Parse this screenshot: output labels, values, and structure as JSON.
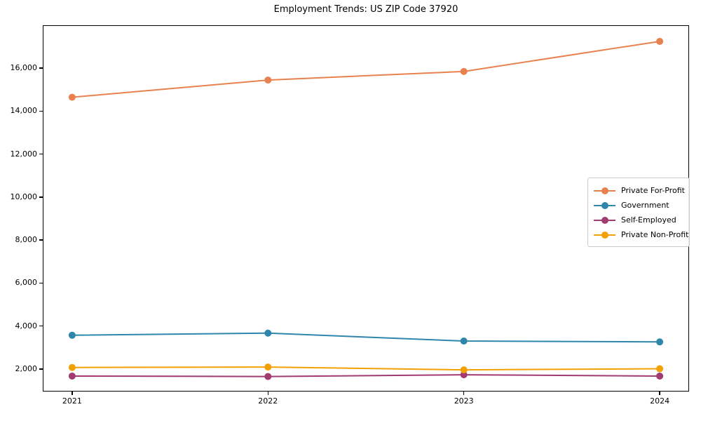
{
  "chart_data": {
    "type": "line",
    "title": "Employment Trends: US ZIP Code 37920",
    "x": [
      2021,
      2022,
      2023,
      2024
    ],
    "x_tick_labels": [
      "2021",
      "2022",
      "2023",
      "2024"
    ],
    "xlim": [
      2020.85,
      2024.15
    ],
    "y_ticks": [
      2000,
      4000,
      6000,
      8000,
      10000,
      12000,
      14000,
      16000
    ],
    "y_tick_labels": [
      "2,000",
      "4,000",
      "6,000",
      "8,000",
      "10,000",
      "12,000",
      "14,000",
      "16,000"
    ],
    "ylim": [
      950,
      18000
    ],
    "grid": false,
    "legend_position": "center right",
    "series": [
      {
        "name": "Private For-Profit",
        "color": "#E8814D",
        "values": [
          14650,
          15450,
          15850,
          17250
        ]
      },
      {
        "name": "Government",
        "color": "#2E86AB",
        "values": [
          3570,
          3670,
          3300,
          3260
        ]
      },
      {
        "name": "Self-Employed",
        "color": "#A23B72",
        "values": [
          1670,
          1650,
          1730,
          1670
        ]
      },
      {
        "name": "Private Non-Profit",
        "color": "#F2A104",
        "values": [
          2070,
          2090,
          1960,
          2010
        ]
      }
    ]
  }
}
